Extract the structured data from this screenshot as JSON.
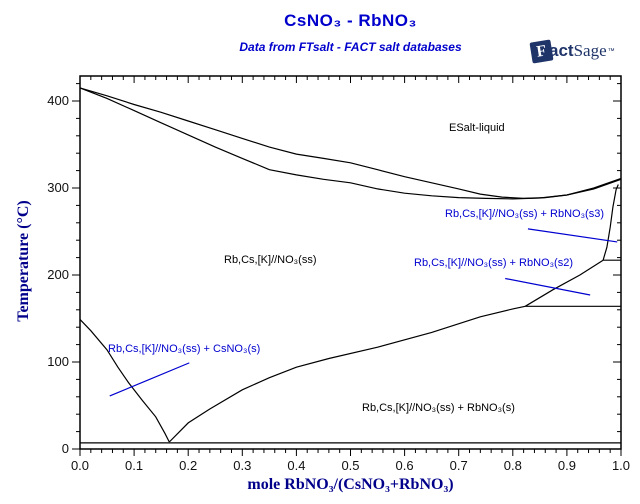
{
  "header": {
    "title": "CsNO₃ - RbNO₃",
    "subtitle": "Data from FTsalt - FACT salt databases",
    "logo": {
      "f": "F",
      "act": "act",
      "sage": "Sage",
      "tm": "™"
    }
  },
  "chart_data": {
    "type": "line",
    "title": "CsNO₃ - RbNO₃",
    "subtitle": "Data from FTsalt - FACT salt databases",
    "xlabel": "mole RbNO₃/(CsNO₃+RbNO₃)",
    "ylabel": "Temperature (°C)",
    "xlim": [
      0.0,
      1.0
    ],
    "ylim": [
      0,
      430
    ],
    "grid": false,
    "xtick_labels": [
      "0.0",
      "0.1",
      "0.2",
      "0.3",
      "0.4",
      "0.5",
      "0.6",
      "0.7",
      "0.8",
      "0.9",
      "1.0"
    ],
    "xtick_values": [
      0,
      0.1,
      0.2,
      0.3,
      0.4,
      0.5,
      0.6,
      0.7,
      0.8,
      0.9,
      1.0
    ],
    "xminor_step": 0.02,
    "ytick_labels": [
      "0",
      "100",
      "200",
      "300",
      "400"
    ],
    "ytick_values": [
      0,
      100,
      200,
      300,
      400
    ],
    "yminor_step": 20,
    "line_color": "#000000",
    "annotation_color": "#0000D0",
    "series": [
      {
        "name": "liquidus",
        "points": [
          [
            0,
            415
          ],
          [
            0.05,
            406
          ],
          [
            0.1,
            396
          ],
          [
            0.15,
            387
          ],
          [
            0.2,
            377
          ],
          [
            0.25,
            367
          ],
          [
            0.3,
            357
          ],
          [
            0.35,
            347
          ],
          [
            0.4,
            339
          ],
          [
            0.45,
            334
          ],
          [
            0.5,
            329
          ],
          [
            0.55,
            321
          ],
          [
            0.6,
            313
          ],
          [
            0.65,
            306
          ],
          [
            0.7,
            299
          ],
          [
            0.74,
            293
          ],
          [
            0.78,
            289.5
          ],
          [
            0.82,
            288
          ],
          [
            0.86,
            289
          ],
          [
            0.9,
            292
          ],
          [
            0.95,
            300
          ],
          [
            1,
            311
          ]
        ]
      },
      {
        "name": "solidus",
        "points": [
          [
            0,
            415
          ],
          [
            0.05,
            403
          ],
          [
            0.1,
            389
          ],
          [
            0.15,
            375
          ],
          [
            0.2,
            361
          ],
          [
            0.25,
            347
          ],
          [
            0.3,
            334
          ],
          [
            0.35,
            321
          ],
          [
            0.4,
            315
          ],
          [
            0.45,
            310
          ],
          [
            0.5,
            306
          ],
          [
            0.55,
            299
          ],
          [
            0.6,
            294
          ],
          [
            0.65,
            291
          ],
          [
            0.7,
            289
          ],
          [
            0.75,
            288
          ],
          [
            0.8,
            287.5
          ],
          [
            0.85,
            288.5
          ],
          [
            0.9,
            292
          ],
          [
            0.95,
            299
          ],
          [
            1,
            310
          ]
        ]
      },
      {
        "name": "solvus-left-csno3",
        "points": [
          [
            0,
            149
          ],
          [
            0.02,
            136
          ],
          [
            0.05,
            114
          ],
          [
            0.07,
            94
          ],
          [
            0.09,
            76
          ],
          [
            0.115,
            56
          ],
          [
            0.14,
            37
          ],
          [
            0.157,
            18
          ],
          [
            0.165,
            8
          ]
        ]
      },
      {
        "name": "solvus-right-rbno3",
        "points": [
          [
            0.165,
            8
          ],
          [
            0.2,
            30
          ],
          [
            0.24,
            46
          ],
          [
            0.3,
            68
          ],
          [
            0.35,
            82
          ],
          [
            0.4,
            94
          ],
          [
            0.46,
            104
          ],
          [
            0.55,
            117
          ],
          [
            0.65,
            134
          ],
          [
            0.74,
            152
          ],
          [
            0.8,
            161
          ],
          [
            0.823,
            164
          ]
        ]
      },
      {
        "name": "boundary-ss-rbno3s2",
        "points": [
          [
            0.823,
            164
          ],
          [
            0.874,
            183
          ],
          [
            0.924,
            200
          ],
          [
            0.967,
            217
          ]
        ]
      },
      {
        "name": "boundary-ss-rbno3s3",
        "points": [
          [
            0.967,
            217
          ],
          [
            0.974,
            232
          ],
          [
            0.98,
            255
          ],
          [
            0.985,
            278
          ],
          [
            0.991,
            298
          ],
          [
            0.995,
            304
          ]
        ]
      },
      {
        "name": "transition-164C",
        "points": [
          [
            0.823,
            164
          ],
          [
            1,
            164
          ]
        ]
      },
      {
        "name": "transition-217C",
        "points": [
          [
            0.967,
            217
          ],
          [
            1,
            217
          ]
        ]
      },
      {
        "name": "transition-7C",
        "points": [
          [
            0,
            7
          ],
          [
            1,
            7
          ]
        ]
      }
    ],
    "leader_lines": [
      {
        "name": "leader-rbno3s3",
        "from": [
          0.828,
          253
        ],
        "to": [
          0.993,
          238
        ]
      },
      {
        "name": "leader-rbno3s2",
        "from": [
          0.786,
          196
        ],
        "to": [
          0.943,
          177
        ]
      },
      {
        "name": "leader-csno3",
        "from": [
          0.055,
          61
        ],
        "to": [
          0.202,
          99
        ]
      }
    ],
    "region_labels": [
      {
        "id": "esalt",
        "text": "ESalt-liquid",
        "color": "black"
      },
      {
        "id": "ss",
        "text": "Rb,Cs,[K]//NO₃(ss)",
        "color": "black"
      },
      {
        "id": "s3",
        "text": "Rb,Cs,[K]//NO₃(ss) + RbNO₃(s3)",
        "color": "blue"
      },
      {
        "id": "s2",
        "text": "Rb,Cs,[K]//NO₃(ss) + RbNO₃(s2)",
        "color": "blue"
      },
      {
        "id": "cs",
        "text": "Rb,Cs,[K]//NO₃(ss) + CsNO₃(s)",
        "color": "blue"
      },
      {
        "id": "s",
        "text": "Rb,Cs,[K]//NO₃(ss) + RbNO₃(s)",
        "color": "black"
      }
    ]
  }
}
